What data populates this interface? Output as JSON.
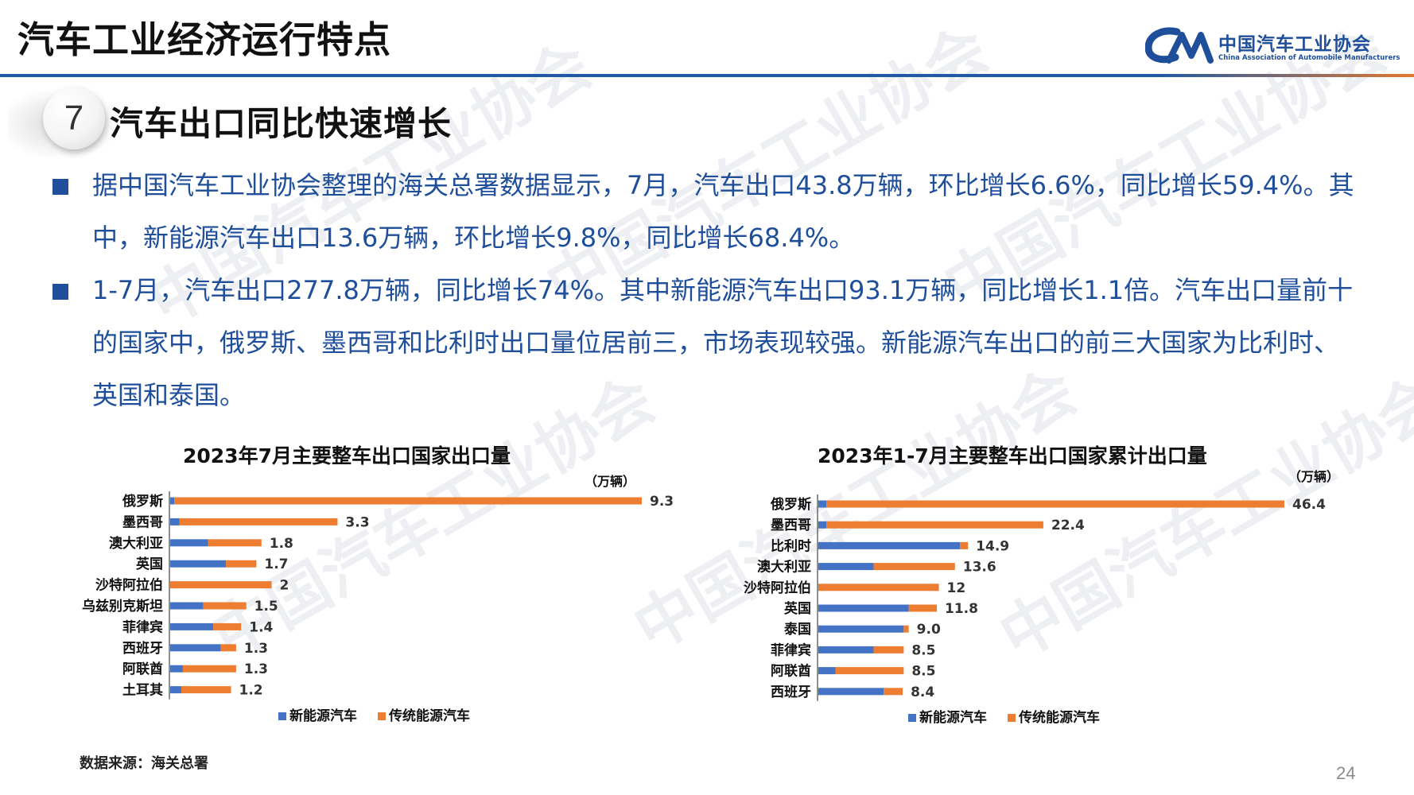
{
  "header": {
    "title": "汽车工业经济运行特点",
    "brand_name": "中国汽车工业协会",
    "brand_sub": "China Association of Automobile Manufacturers",
    "watermark": "中国汽车工业协会"
  },
  "section": {
    "number": "7",
    "title": "汽车出口同比快速增长"
  },
  "bullets": [
    "据中国汽车工业协会整理的海关总署数据显示，7月，汽车出口43.8万辆，环比增长6.6%，同比增长59.4%。其中，新能源汽车出口13.6万辆，环比增长9.8%，同比增长68.4%。",
    "1-7月，汽车出口277.8万辆，同比增长74%。其中新能源汽车出口93.1万辆，同比增长1.1倍。汽车出口量前十的国家中，俄罗斯、墨西哥和比利时出口量位居前三，市场表现较强。新能源汽车出口的前三大国家为比利时、英国和泰国。"
  ],
  "colors": {
    "nev": "#4472c4",
    "traditional": "#ed7d31",
    "brand_blue": "#1f4e9a"
  },
  "chart_data": [
    {
      "type": "bar",
      "orientation": "horizontal",
      "stacked": true,
      "title": "2023年7月主要整车出口国家出口量",
      "unit": "（万辆）",
      "categories": [
        "俄罗斯",
        "墨西哥",
        "澳大利亚",
        "英国",
        "沙特阿拉伯",
        "乌兹别克斯坦",
        "菲律宾",
        "西班牙",
        "阿联酋",
        "土耳其"
      ],
      "series": [
        {
          "name": "新能源汽车",
          "values": [
            0.08,
            0.18,
            0.75,
            1.1,
            0.0,
            0.65,
            0.85,
            1.0,
            0.25,
            0.22
          ]
        },
        {
          "name": "传统能源汽车",
          "values": [
            9.22,
            3.12,
            1.05,
            0.6,
            2.0,
            0.85,
            0.55,
            0.3,
            1.05,
            0.98
          ]
        }
      ],
      "totals": [
        "9.3",
        "3.3",
        "1.8",
        "1.7",
        "2",
        "1.5",
        "1.4",
        "1.3",
        "1.3",
        "1.2"
      ],
      "xlim": [
        0,
        9.3
      ],
      "legend_position": "bottom"
    },
    {
      "type": "bar",
      "orientation": "horizontal",
      "stacked": true,
      "title": "2023年1-7月主要整车出口国家累计出口量",
      "unit": "（万辆）",
      "categories": [
        "俄罗斯",
        "墨西哥",
        "比利时",
        "澳大利亚",
        "沙特阿拉伯",
        "英国",
        "泰国",
        "菲律宾",
        "阿联酋",
        "西班牙"
      ],
      "series": [
        {
          "name": "新能源汽车",
          "values": [
            0.8,
            0.8,
            14.1,
            5.5,
            0.0,
            9.0,
            8.5,
            5.5,
            1.7,
            6.5
          ]
        },
        {
          "name": "传统能源汽车",
          "values": [
            45.6,
            21.6,
            0.8,
            8.1,
            12.0,
            2.8,
            0.5,
            3.0,
            6.8,
            1.9
          ]
        }
      ],
      "totals": [
        "46.4",
        "22.4",
        "14.9",
        "13.6",
        "12",
        "11.8",
        "9.0",
        "8.5",
        "8.5",
        "8.4"
      ],
      "xlim": [
        0,
        46.4
      ],
      "legend_position": "bottom"
    }
  ],
  "footer": {
    "source": "数据来源：海关总署",
    "page_number": "24"
  }
}
